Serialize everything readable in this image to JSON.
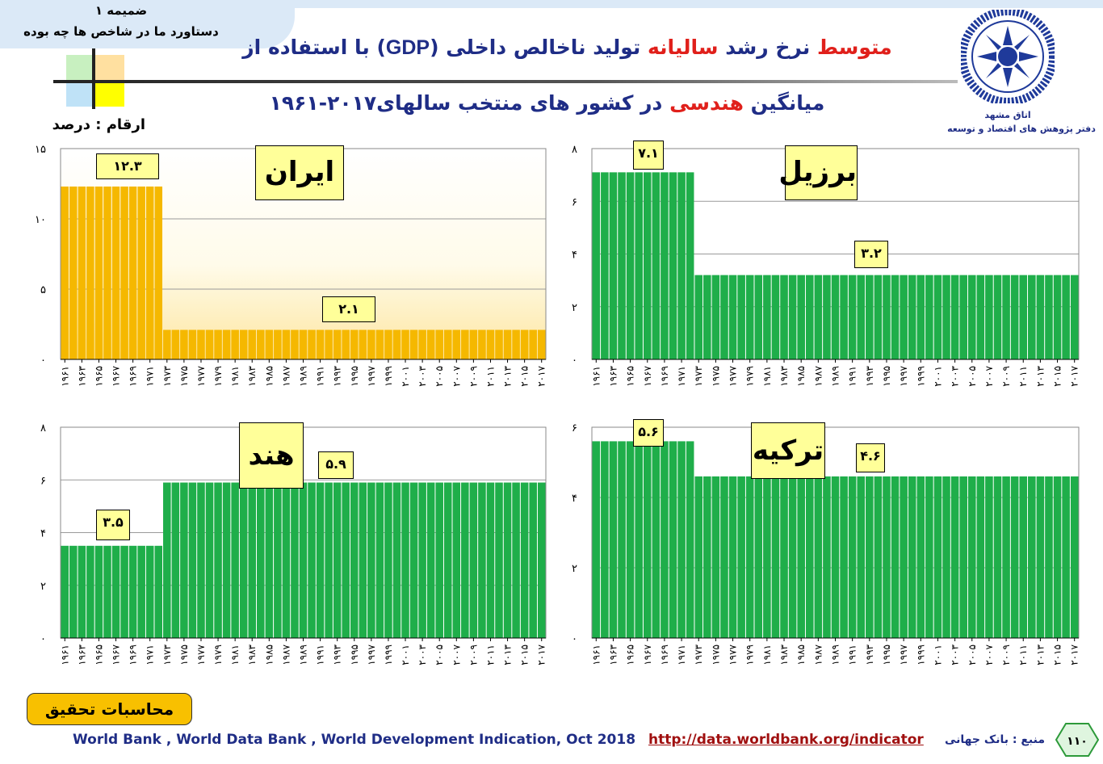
{
  "header": {
    "tab_line1": "ضمیمه ۱",
    "tab_line2": "دستاورد ما در شاخص ها چه بوده",
    "title1_a": "متوسط",
    "title1_b": " نرخ رشد ",
    "title1_c": "سالیانه",
    "title1_d": " تولید ناخالص داخلی (",
    "title1_e": "GDP",
    "title1_f": ") با استفاده از",
    "title2_a": "میانگین ",
    "title2_b": "هندسی",
    "title2_c": " در کشور های منتخب سالهای۲۰۱۷-۱۹۶۱",
    "units": "ارقام : درصد"
  },
  "logo": {
    "caption1": "اتاق مشهد",
    "caption2": "دفتر پژوهش های اقتصاد و توسعه"
  },
  "colors": {
    "iran": "#f5b800",
    "green": "#1fae4a",
    "title": "#1f2d86",
    "accent": "#e0201b",
    "label_bg": "#ffff99"
  },
  "chart_data": [
    {
      "type": "bar",
      "country": "ایران",
      "color": "#f5b800",
      "ylim": [
        0,
        15
      ],
      "yticks": [
        "۰",
        "۵",
        "۱۰",
        "۱۵"
      ],
      "x_labels": [
        "۱۹۶۱",
        "۱۹۶۳",
        "۱۹۶۵",
        "۱۹۶۷",
        "۱۹۶۹",
        "۱۹۷۱",
        "۱۹۷۳",
        "۱۹۷۵",
        "۱۹۷۷",
        "۱۹۷۹",
        "۱۹۸۱",
        "۱۹۸۳",
        "۱۹۸۵",
        "۱۹۸۷",
        "۱۹۸۹",
        "۱۹۹۱",
        "۱۹۹۳",
        "۱۹۹۵",
        "۱۹۹۷",
        "۱۹۹۹",
        "۲۰۰۱",
        "۲۰۰۳",
        "۲۰۰۵",
        "۲۰۰۷",
        "۲۰۰۹",
        "۲۰۱۱",
        "۲۰۱۳",
        "۲۰۱۵",
        "۲۰۱۷"
      ],
      "x_start": 1961,
      "x_end": 2017,
      "segments": [
        {
          "from": 1961,
          "to": 1972,
          "value": 12.3,
          "label": "۱۲.۳"
        },
        {
          "from": 1973,
          "to": 2017,
          "value": 2.1,
          "label": "۲.۱"
        }
      ]
    },
    {
      "type": "bar",
      "country": "برزیل",
      "color": "#1fae4a",
      "ylim": [
        0,
        8
      ],
      "yticks": [
        "۰",
        "۲",
        "۴",
        "۶",
        "۸"
      ],
      "x_labels": [
        "۱۹۶۱",
        "۱۹۶۳",
        "۱۹۶۵",
        "۱۹۶۷",
        "۱۹۶۹",
        "۱۹۷۱",
        "۱۹۷۳",
        "۱۹۷۵",
        "۱۹۷۷",
        "۱۹۷۹",
        "۱۹۸۱",
        "۱۹۸۳",
        "۱۹۸۵",
        "۱۹۸۷",
        "۱۹۸۹",
        "۱۹۹۱",
        "۱۹۹۳",
        "۱۹۹۵",
        "۱۹۹۷",
        "۱۹۹۹",
        "۲۰۰۱",
        "۲۰۰۳",
        "۲۰۰۵",
        "۲۰۰۷",
        "۲۰۰۹",
        "۲۰۱۱",
        "۲۰۱۳",
        "۲۰۱۵",
        "۲۰۱۷"
      ],
      "x_start": 1961,
      "x_end": 2017,
      "segments": [
        {
          "from": 1961,
          "to": 1972,
          "value": 7.1,
          "label": "۷.۱"
        },
        {
          "from": 1973,
          "to": 2017,
          "value": 3.2,
          "label": "۳.۲"
        }
      ]
    },
    {
      "type": "bar",
      "country": "هند",
      "color": "#1fae4a",
      "ylim": [
        0,
        8
      ],
      "yticks": [
        "۰",
        "۲",
        "۴",
        "۶",
        "۸"
      ],
      "x_labels": [
        "۱۹۶۱",
        "۱۹۶۳",
        "۱۹۶۵",
        "۱۹۶۷",
        "۱۹۶۹",
        "۱۹۷۱",
        "۱۹۷۳",
        "۱۹۷۵",
        "۱۹۷۷",
        "۱۹۷۹",
        "۱۹۸۱",
        "۱۹۸۳",
        "۱۹۸۵",
        "۱۹۸۷",
        "۱۹۸۹",
        "۱۹۹۱",
        "۱۹۹۳",
        "۱۹۹۵",
        "۱۹۹۷",
        "۱۹۹۹",
        "۲۰۰۱",
        "۲۰۰۳",
        "۲۰۰۵",
        "۲۰۰۷",
        "۲۰۰۹",
        "۲۰۱۱",
        "۲۰۱۳",
        "۲۰۱۵",
        "۲۰۱۷"
      ],
      "x_start": 1961,
      "x_end": 2017,
      "segments": [
        {
          "from": 1961,
          "to": 1972,
          "value": 3.5,
          "label": "۳.۵"
        },
        {
          "from": 1973,
          "to": 2017,
          "value": 5.9,
          "label": "۵.۹"
        }
      ]
    },
    {
      "type": "bar",
      "country": "ترکیه",
      "color": "#1fae4a",
      "ylim": [
        0,
        6
      ],
      "yticks": [
        "۰",
        "۲",
        "۴",
        "۶"
      ],
      "x_labels": [
        "۱۹۶۱",
        "۱۹۶۳",
        "۱۹۶۵",
        "۱۹۶۷",
        "۱۹۶۹",
        "۱۹۷۱",
        "۱۹۷۳",
        "۱۹۷۵",
        "۱۹۷۷",
        "۱۹۷۹",
        "۱۹۸۱",
        "۱۹۸۳",
        "۱۹۸۵",
        "۱۹۸۷",
        "۱۹۸۹",
        "۱۹۹۱",
        "۱۹۹۳",
        "۱۹۹۵",
        "۱۹۹۷",
        "۱۹۹۹",
        "۲۰۰۱",
        "۲۰۰۳",
        "۲۰۰۵",
        "۲۰۰۷",
        "۲۰۰۹",
        "۲۰۱۱",
        "۲۰۱۳",
        "۲۰۱۵",
        "۲۰۱۷"
      ],
      "x_start": 1961,
      "x_end": 2017,
      "segments": [
        {
          "from": 1961,
          "to": 1972,
          "value": 5.6,
          "label": "۵.۶"
        },
        {
          "from": 1973,
          "to": 2017,
          "value": 4.6,
          "label": "۴.۶"
        }
      ]
    }
  ],
  "footer": {
    "calc_label": "محاسبات تحقیق",
    "source_en": "World Bank , World Data Bank , World Development Indication, Oct 2018",
    "source_url": "http://data.worldbank.org/indicator",
    "source_fa": "منبع : بانک جهانی",
    "page_number": "۱۱۰"
  }
}
